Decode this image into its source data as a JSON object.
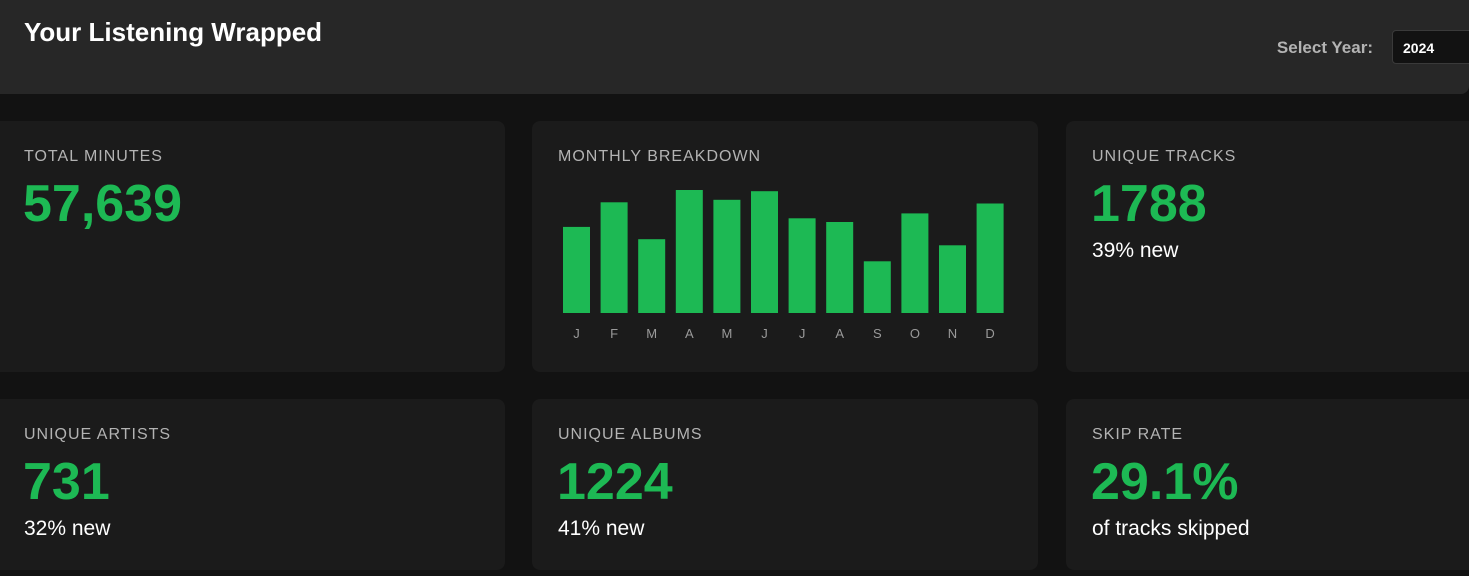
{
  "header": {
    "title": "Your Listening Wrapped",
    "year_label": "Select Year:",
    "year_value": "2024"
  },
  "cards": {
    "total_minutes": {
      "label": "TOTAL MINUTES",
      "value": "57,639"
    },
    "monthly": {
      "label": "MONTHLY BREAKDOWN"
    },
    "unique_tracks": {
      "label": "UNIQUE TRACKS",
      "value": "1788",
      "sub": "39% new"
    },
    "unique_artists": {
      "label": "UNIQUE ARTISTS",
      "value": "731",
      "sub": "32% new"
    },
    "unique_albums": {
      "label": "UNIQUE ALBUMS",
      "value": "1224",
      "sub": "41% new"
    },
    "skip_rate": {
      "label": "SKIP RATE",
      "value": "29.1%",
      "sub": "of tracks skipped"
    }
  },
  "colors": {
    "accent": "#1db954",
    "background": "#121212",
    "card": "#1b1b1b",
    "header": "#272727"
  },
  "chart_data": {
    "type": "bar",
    "categories": [
      "J",
      "F",
      "M",
      "A",
      "M",
      "J",
      "J",
      "A",
      "S",
      "O",
      "N",
      "D"
    ],
    "values": [
      70,
      90,
      60,
      100,
      92,
      99,
      77,
      74,
      42,
      81,
      55,
      89
    ],
    "ylim": [
      0,
      100
    ],
    "grid": false,
    "legend": "none"
  }
}
